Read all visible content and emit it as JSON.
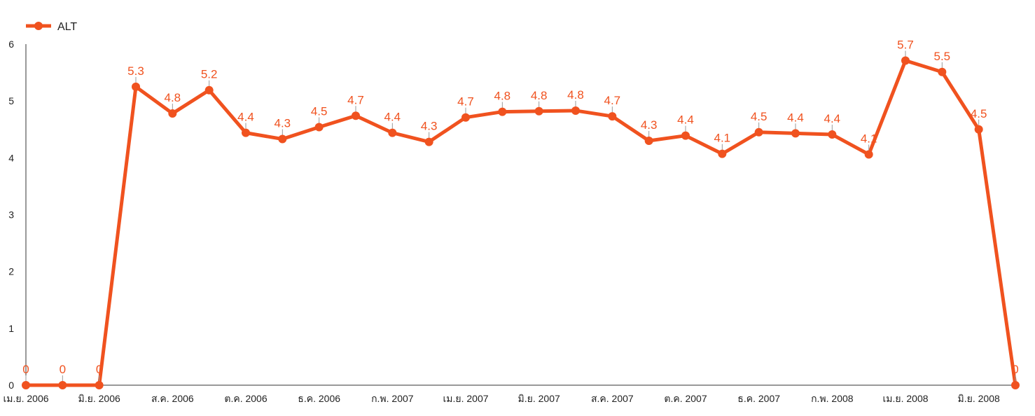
{
  "chart_data": {
    "type": "line",
    "legend": {
      "position": "top-left"
    },
    "series": [
      {
        "name": "ALT",
        "color": "#f0521f",
        "values": [
          0,
          0,
          0,
          5.25,
          4.78,
          5.19,
          4.44,
          4.33,
          4.54,
          4.74,
          4.44,
          4.28,
          4.71,
          4.81,
          4.82,
          4.83,
          4.73,
          4.3,
          4.39,
          4.07,
          4.45,
          4.43,
          4.41,
          4.06,
          5.71,
          5.51,
          4.5,
          0
        ],
        "labels": [
          "0",
          "0",
          "0",
          "5.3",
          "4.8",
          "5.2",
          "4.4",
          "4.3",
          "4.5",
          "4.7",
          "4.4",
          "4.3",
          "4.7",
          "4.8",
          "4.8",
          "4.8",
          "4.7",
          "4.3",
          "4.4",
          "4.1",
          "4.5",
          "4.4",
          "4.4",
          "4.1",
          "5.7",
          "5.5",
          "4.5",
          "0"
        ]
      }
    ],
    "x_tick_labels": [
      "เม.ย. 2006",
      "มิ.ย. 2006",
      "ส.ค. 2006",
      "ต.ค. 2006",
      "ธ.ค. 2006",
      "ก.พ. 2007",
      "เม.ย. 2007",
      "มิ.ย. 2007",
      "ส.ค. 2007",
      "ต.ค. 2007",
      "ธ.ค. 2007",
      "ก.พ. 2008",
      "เม.ย. 2008",
      "มิ.ย. 2008"
    ],
    "y_ticks": [
      "0",
      "1",
      "2",
      "3",
      "4",
      "5",
      "6"
    ],
    "ylim": [
      0,
      6
    ],
    "grid": false
  }
}
